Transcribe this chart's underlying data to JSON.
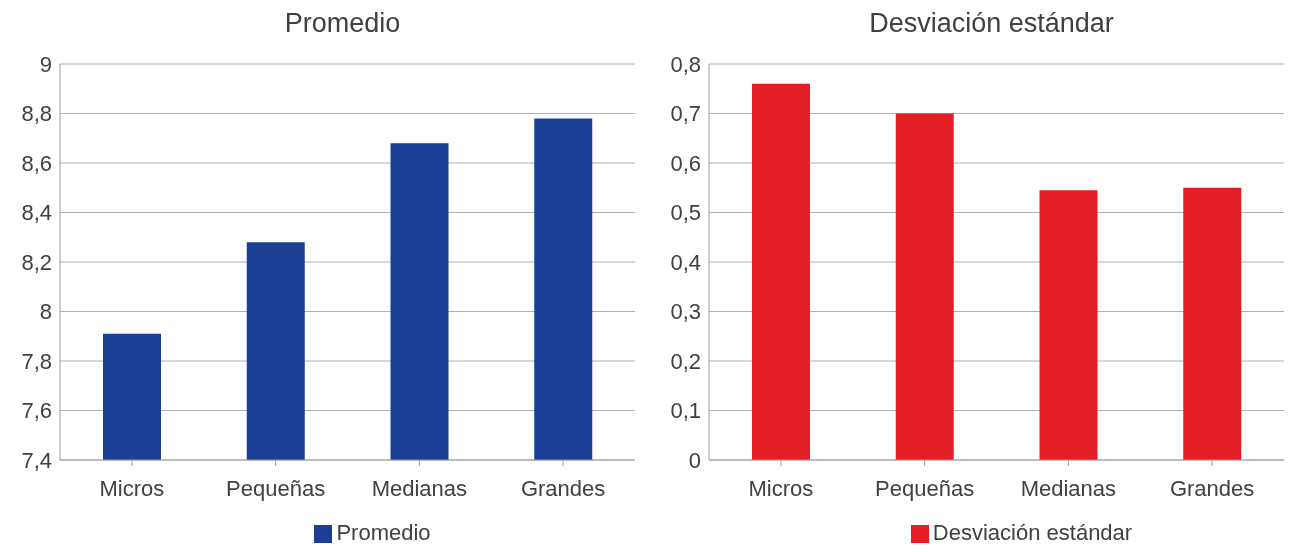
{
  "chart_data": [
    {
      "type": "bar",
      "title": "Promedio",
      "categories": [
        "Micros",
        "Pequeñas",
        "Medianas",
        "Grandes"
      ],
      "series": [
        {
          "name": "Promedio",
          "color": "#1b3f94",
          "values": [
            7.91,
            8.28,
            8.68,
            8.78
          ]
        }
      ],
      "ylim": [
        7.4,
        9
      ],
      "yticks": [
        {
          "value": 7.4,
          "label": "7,4"
        },
        {
          "value": 7.6,
          "label": "7,6"
        },
        {
          "value": 7.8,
          "label": "7,8"
        },
        8,
        {
          "value": 8.2,
          "label": "8,2"
        },
        {
          "value": 8.4,
          "label": "8,4"
        },
        {
          "value": 8.6,
          "label": "8,6"
        },
        {
          "value": 8.8,
          "label": "8,8"
        },
        9
      ],
      "grid": "y",
      "legend": "bottom"
    },
    {
      "type": "bar",
      "title": "Desviación estándar",
      "categories": [
        "Micros",
        "Pequeñas",
        "Medianas",
        "Grandes"
      ],
      "series": [
        {
          "name": "Desviación estándar",
          "color": "#e31e24",
          "values": [
            0.76,
            0.7,
            0.545,
            0.55
          ]
        }
      ],
      "ylim": [
        0,
        0.8
      ],
      "yticks": [
        0,
        {
          "value": 0.1,
          "label": "0,1"
        },
        {
          "value": 0.2,
          "label": "0,2"
        },
        {
          "value": 0.3,
          "label": "0,3"
        },
        {
          "value": 0.4,
          "label": "0,4"
        },
        {
          "value": 0.5,
          "label": "0,5"
        },
        {
          "value": 0.6,
          "label": "0,6"
        },
        {
          "value": 0.7,
          "label": "0,7"
        },
        {
          "value": 0.8,
          "label": "0,8"
        }
      ],
      "grid": "y",
      "legend": "bottom"
    }
  ]
}
